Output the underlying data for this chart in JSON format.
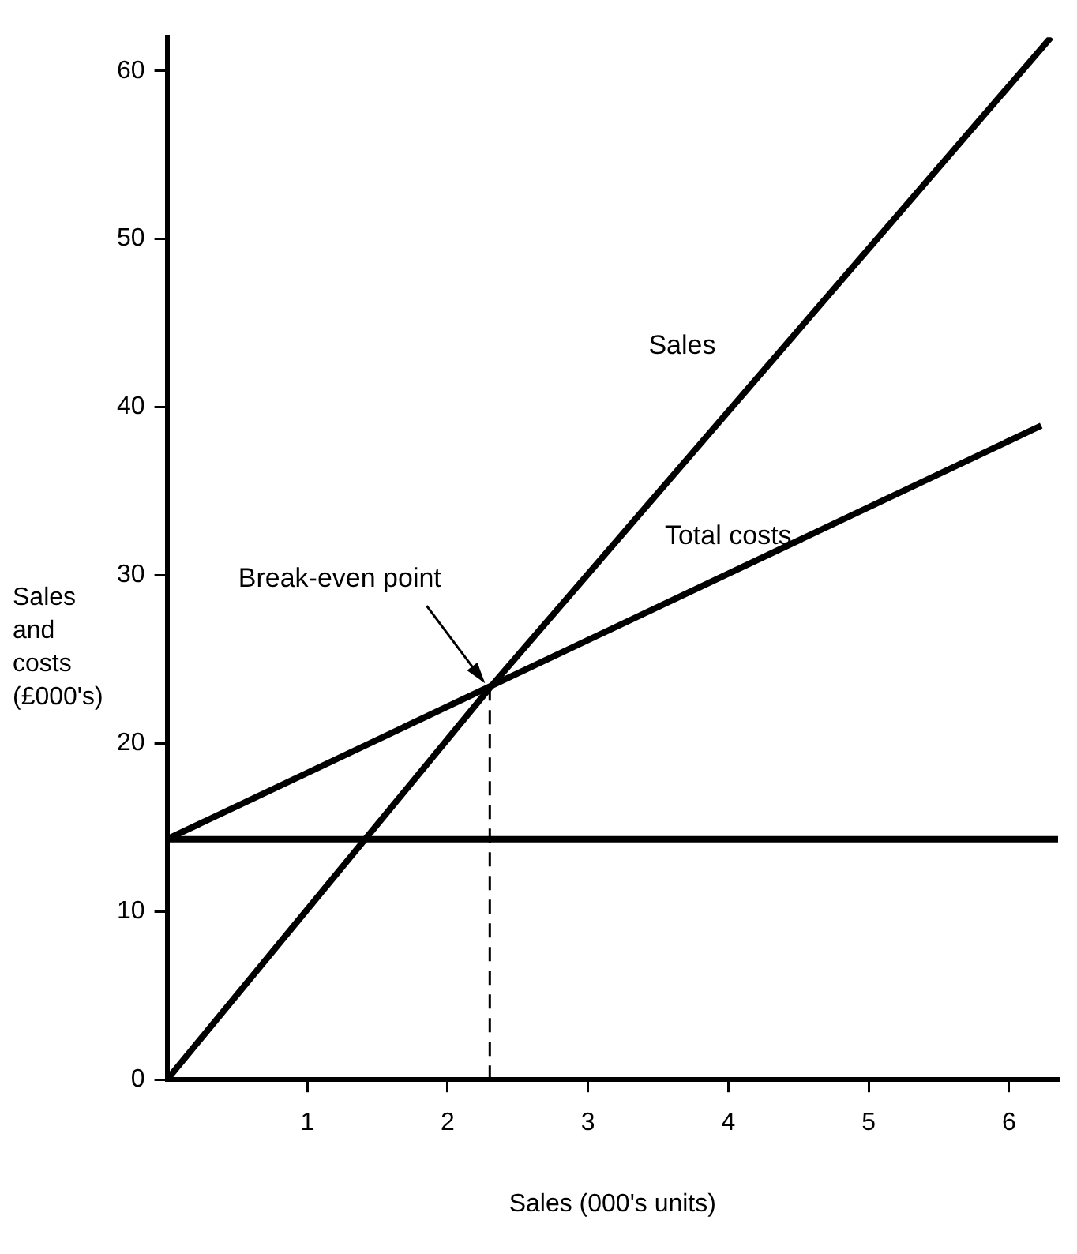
{
  "chart_data": {
    "type": "line",
    "xlabel": "Sales (000's units)",
    "ylabel": "Sales and costs (£000's)",
    "xlim": [
      0,
      6.35
    ],
    "xticks": [
      1,
      2,
      3,
      4,
      5,
      6
    ],
    "ylim": [
      0,
      62
    ],
    "yticks": [
      0,
      10,
      20,
      30,
      40,
      50,
      60
    ],
    "grid": false,
    "legend": false,
    "marker": "none",
    "line_style": "solid",
    "series": [
      {
        "name": "Sales",
        "color": "#000000",
        "x": [
          0,
          2.3,
          6.3
        ],
        "values": [
          0,
          23.3,
          62
        ]
      },
      {
        "name": "Total costs",
        "color": "#000000",
        "x": [
          0,
          6.23
        ],
        "values": [
          14.3,
          38.9
        ]
      },
      {
        "color": "#000000",
        "x": [
          0,
          6.35
        ],
        "values": [
          14.3,
          14.3
        ]
      },
      {
        "color": "#000000",
        "x": [
          2.3,
          2.3
        ],
        "values": [
          0,
          23.3
        ],
        "line_style": "dashed"
      }
    ],
    "annotations": [
      {
        "text": "Break-even point",
        "x": 2.3,
        "y": 23.3
      }
    ]
  }
}
